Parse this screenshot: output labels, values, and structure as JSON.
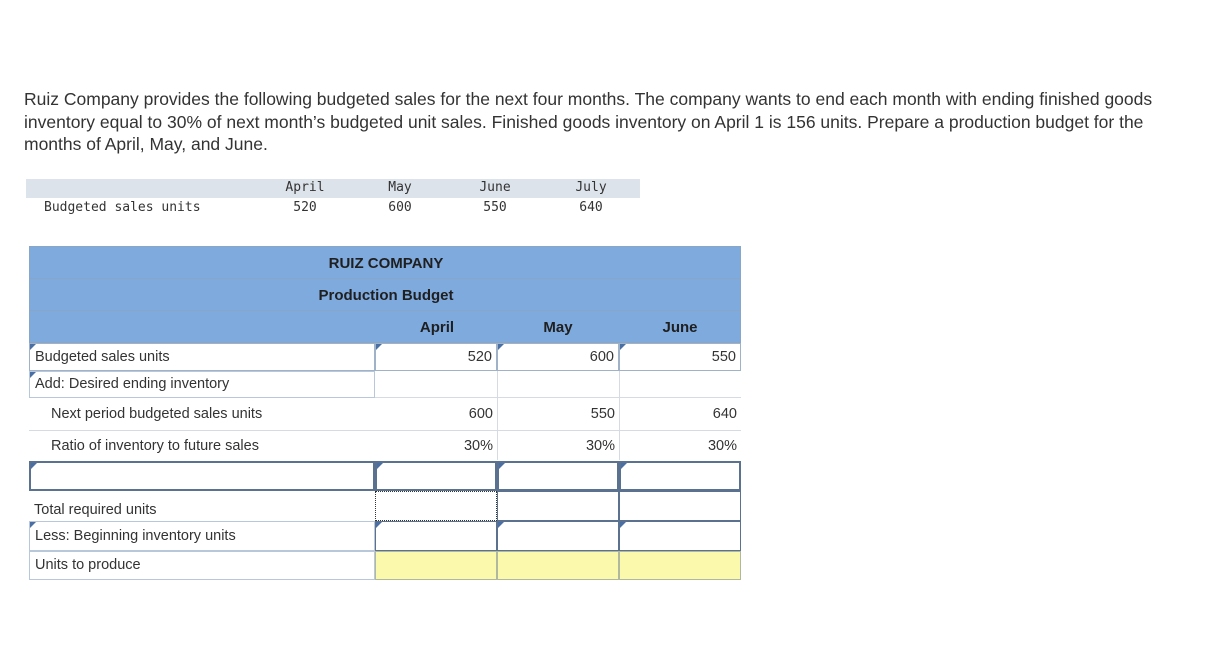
{
  "problem_text": "Ruiz Company provides the following budgeted sales for the next four months. The company wants to end each month with ending finished goods inventory equal to 30% of next month’s budgeted unit sales. Finished goods inventory on April 1 is 156 units. Prepare a production budget for the months of April, May, and June.",
  "given": {
    "row_label": "Budgeted sales units",
    "months": [
      "April",
      "May",
      "June",
      "July"
    ],
    "values": [
      "520",
      "600",
      "550",
      "640"
    ]
  },
  "budget": {
    "company": "RUIZ COMPANY",
    "title": "Production Budget",
    "columns": [
      "April",
      "May",
      "June"
    ],
    "rows": {
      "sales_label": "Budgeted sales units",
      "sales_values": [
        "520",
        "600",
        "550"
      ],
      "desired_label": "Add: Desired ending inventory",
      "next_label": "Next period budgeted sales units",
      "next_values": [
        "600",
        "550",
        "640"
      ],
      "ratio_label": "Ratio of inventory to future sales",
      "ratio_values": [
        "30%",
        "30%",
        "30%"
      ],
      "total_label": "Total required units",
      "less_label": "Less: Beginning inventory units",
      "produce_label": "Units to produce"
    }
  }
}
